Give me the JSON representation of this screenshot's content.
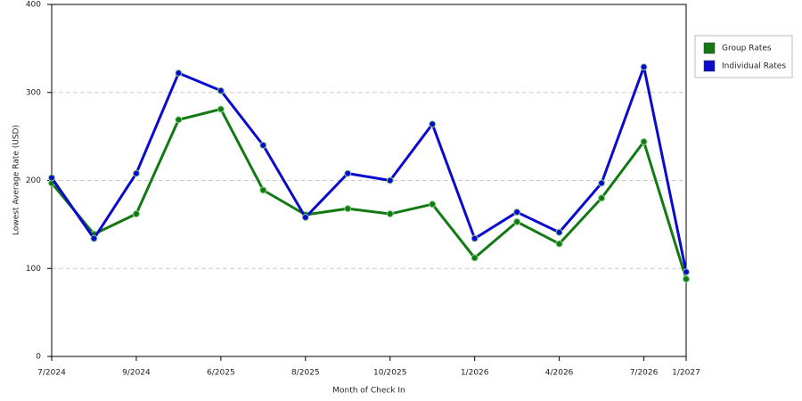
{
  "chart_data": {
    "type": "line",
    "x_label": "Month of Check In",
    "y_label": "Lowest Average Rate (USD)",
    "categories": [
      "7/2024",
      null,
      "9/2024",
      null,
      "6/2025",
      null,
      "8/2025",
      null,
      "10/2025",
      null,
      "1/2026",
      null,
      "4/2026",
      null,
      "7/2026",
      "1/2027"
    ],
    "series": [
      {
        "name": "Group Rates",
        "color": "#137a13",
        "values": [
          197,
          139,
          162,
          269,
          281,
          189,
          161,
          168,
          162,
          173,
          112,
          153,
          128,
          180,
          244,
          88
        ]
      },
      {
        "name": "Individual Rates",
        "color": "#0a0acc",
        "values": [
          203,
          134,
          208,
          322,
          302,
          240,
          158,
          208,
          200,
          264,
          134,
          164,
          141,
          197,
          329,
          96
        ]
      }
    ],
    "ylim": [
      0,
      400
    ],
    "yticks": [
      0,
      100,
      200,
      300,
      400
    ],
    "grid": true,
    "legend": "right"
  }
}
